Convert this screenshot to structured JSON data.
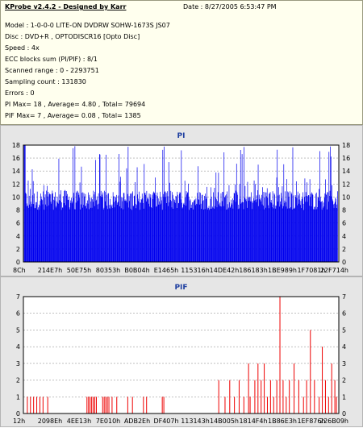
{
  "header": {
    "title": "KProbe v2.4.2 - Designed by Karr",
    "date": "Date : 8/27/2005 6:53:47 PM"
  },
  "info_lines": [
    "Model : 1-0-0-0 LITE-ON DVDRW SOHW-1673S JS07",
    "Disc : DVD+R , OPTODISCR16 [Opto Disc]",
    "Speed : 4x",
    "ECC blocks sum (PI/PIF) : 8/1",
    "Scanned range : 0 - 2293751",
    "Sampling count : 131830",
    "Errors : 0",
    "PI Max= 18 , Average= 4.80 , Total= 79694",
    "PIF Max= 7 , Average= 0.08 , Total= 1385"
  ],
  "chart_data": [
    {
      "type": "bar",
      "title": "PI",
      "color": "#0000ee",
      "ylim": [
        0,
        18
      ],
      "yticks": [
        0,
        2,
        4,
        6,
        8,
        10,
        12,
        14,
        16,
        18
      ],
      "grid": true,
      "xtick_labels": [
        "8Ch",
        "214E7h",
        "50E75h",
        "80353h",
        "B0B04h",
        "E1465h",
        "115316h",
        "14DE42h",
        "186183h",
        "1BE989h",
        "1F7081h",
        "22F714h"
      ],
      "scanned_range": [
        0,
        2293751
      ],
      "max": 18,
      "average": 4.8,
      "base_band_range": [
        8,
        11
      ]
    },
    {
      "type": "bar",
      "title": "PIF",
      "color": "#ee0000",
      "ylim": [
        0,
        7
      ],
      "yticks": [
        0,
        1,
        2,
        3,
        4,
        5,
        6,
        7
      ],
      "grid": true,
      "xtick_labels": [
        "12h",
        "2098Eh",
        "4EE13h",
        "7E010h",
        "ADB2Eh",
        "DF407h",
        "113143h",
        "14B005h",
        "1814F4h",
        "1B86E3h",
        "1EF876h",
        "226B09h"
      ],
      "scanned_range": [
        0,
        2293751
      ],
      "max": 7,
      "average": 0.08,
      "spikes": [
        {
          "x": 0.01,
          "y": 1
        },
        {
          "x": 0.02,
          "y": 1
        },
        {
          "x": 0.03,
          "y": 1
        },
        {
          "x": 0.04,
          "y": 1
        },
        {
          "x": 0.05,
          "y": 1
        },
        {
          "x": 0.06,
          "y": 1
        },
        {
          "x": 0.075,
          "y": 1
        },
        {
          "x": 0.2,
          "y": 1
        },
        {
          "x": 0.205,
          "y": 1
        },
        {
          "x": 0.21,
          "y": 1
        },
        {
          "x": 0.215,
          "y": 1
        },
        {
          "x": 0.22,
          "y": 1
        },
        {
          "x": 0.225,
          "y": 1
        },
        {
          "x": 0.23,
          "y": 1
        },
        {
          "x": 0.25,
          "y": 1
        },
        {
          "x": 0.255,
          "y": 1
        },
        {
          "x": 0.26,
          "y": 1
        },
        {
          "x": 0.265,
          "y": 1
        },
        {
          "x": 0.27,
          "y": 1
        },
        {
          "x": 0.28,
          "y": 1
        },
        {
          "x": 0.295,
          "y": 1
        },
        {
          "x": 0.33,
          "y": 1
        },
        {
          "x": 0.345,
          "y": 1
        },
        {
          "x": 0.38,
          "y": 1
        },
        {
          "x": 0.39,
          "y": 1
        },
        {
          "x": 0.44,
          "y": 1
        },
        {
          "x": 0.445,
          "y": 1
        },
        {
          "x": 0.62,
          "y": 2
        },
        {
          "x": 0.64,
          "y": 1
        },
        {
          "x": 0.655,
          "y": 2
        },
        {
          "x": 0.67,
          "y": 1
        },
        {
          "x": 0.685,
          "y": 2
        },
        {
          "x": 0.7,
          "y": 1
        },
        {
          "x": 0.715,
          "y": 3
        },
        {
          "x": 0.72,
          "y": 1
        },
        {
          "x": 0.735,
          "y": 2
        },
        {
          "x": 0.745,
          "y": 3
        },
        {
          "x": 0.755,
          "y": 2
        },
        {
          "x": 0.765,
          "y": 3
        },
        {
          "x": 0.775,
          "y": 1
        },
        {
          "x": 0.785,
          "y": 2
        },
        {
          "x": 0.795,
          "y": 1
        },
        {
          "x": 0.805,
          "y": 2
        },
        {
          "x": 0.815,
          "y": 7
        },
        {
          "x": 0.825,
          "y": 2
        },
        {
          "x": 0.835,
          "y": 1
        },
        {
          "x": 0.845,
          "y": 2
        },
        {
          "x": 0.86,
          "y": 3
        },
        {
          "x": 0.875,
          "y": 2
        },
        {
          "x": 0.89,
          "y": 1
        },
        {
          "x": 0.9,
          "y": 2
        },
        {
          "x": 0.912,
          "y": 5
        },
        {
          "x": 0.925,
          "y": 2
        },
        {
          "x": 0.94,
          "y": 1
        },
        {
          "x": 0.95,
          "y": 4
        },
        {
          "x": 0.96,
          "y": 2
        },
        {
          "x": 0.97,
          "y": 1
        },
        {
          "x": 0.98,
          "y": 3
        },
        {
          "x": 0.99,
          "y": 2
        },
        {
          "x": 0.995,
          "y": 1
        }
      ]
    }
  ]
}
